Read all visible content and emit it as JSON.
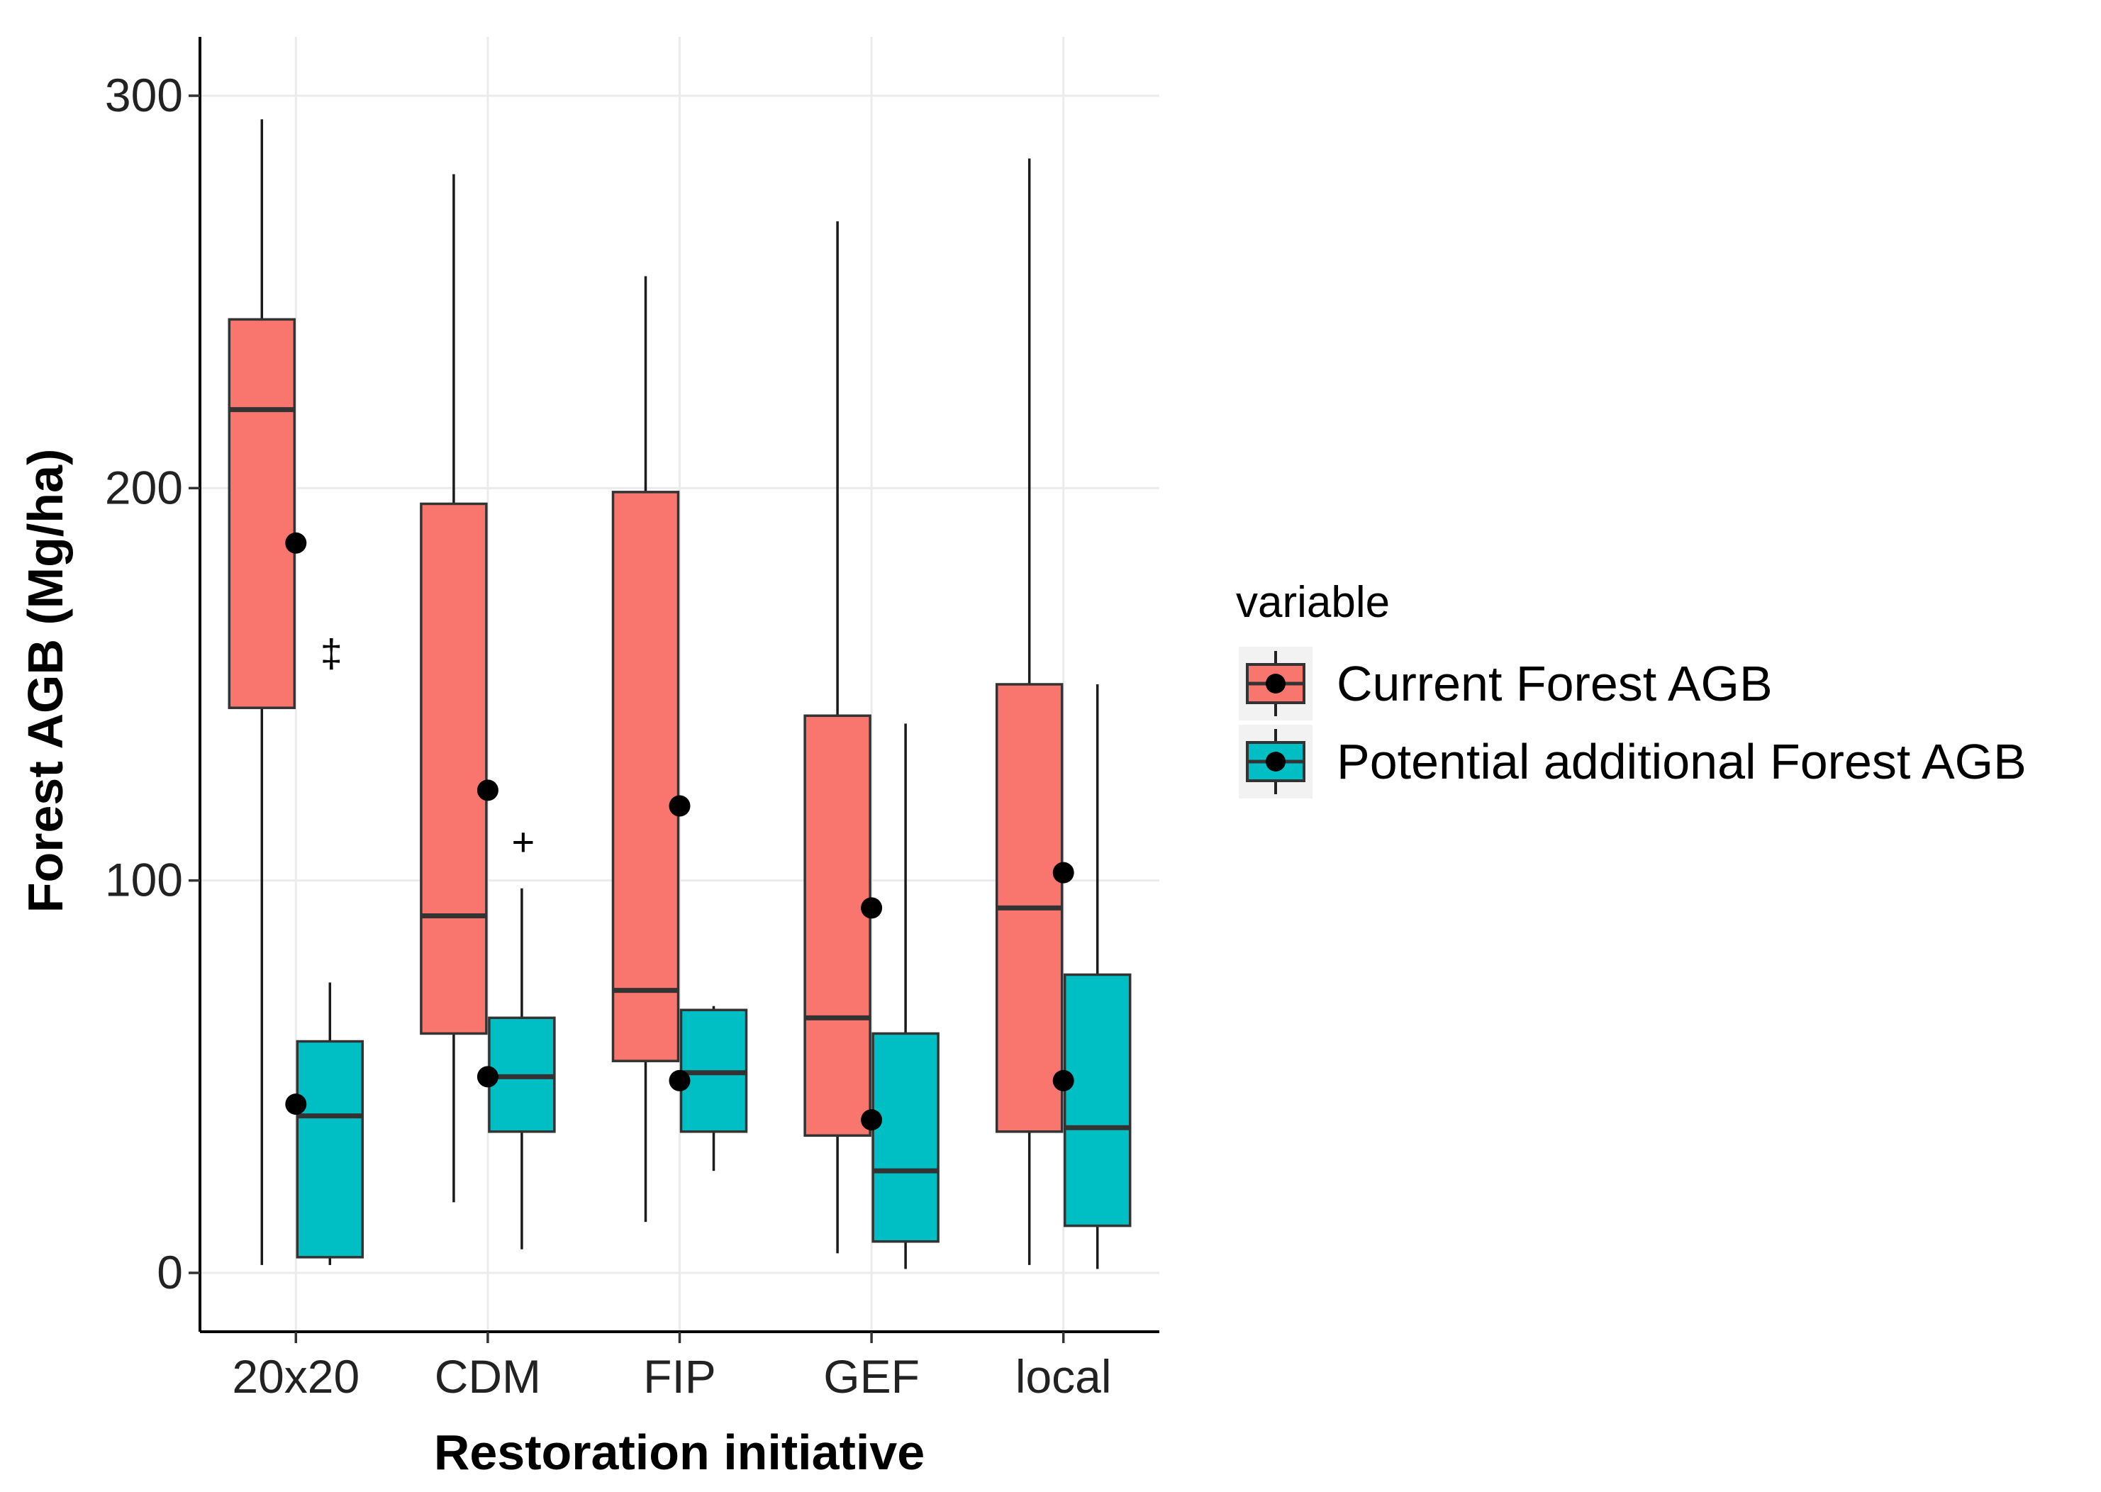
{
  "chart_data": {
    "type": "boxplot",
    "title": "",
    "xlabel": "Restoration initiative",
    "ylabel": "Forest AGB (Mg/ha)",
    "ylim": [
      -15,
      315
    ],
    "yticks": [
      0,
      100,
      200,
      300
    ],
    "ytick_labels": [
      "0",
      "100",
      "200",
      "300"
    ],
    "categories": [
      "20x20",
      "CDM",
      "FIP",
      "GEF",
      "local"
    ],
    "grid": true,
    "legend": {
      "title": "variable",
      "position": "right"
    },
    "series": [
      {
        "name": "Current Forest AGB",
        "color": "#F8766D",
        "boxes": [
          {
            "whisker_low": 2,
            "q1": 144,
            "median": 220,
            "q3": 243,
            "whisker_high": 294,
            "mean": 186
          },
          {
            "whisker_low": 18,
            "q1": 61,
            "median": 91,
            "q3": 196,
            "whisker_high": 280,
            "mean": 123
          },
          {
            "whisker_low": 13,
            "q1": 54,
            "median": 72,
            "q3": 199,
            "whisker_high": 254,
            "mean": 119
          },
          {
            "whisker_low": 5,
            "q1": 35,
            "median": 65,
            "q3": 142,
            "whisker_high": 268,
            "mean": 93
          },
          {
            "whisker_low": 2,
            "q1": 36,
            "median": 93,
            "q3": 150,
            "whisker_high": 284,
            "mean": 102
          }
        ]
      },
      {
        "name": "Potential additional Forest AGB",
        "color": "#00BFC4",
        "boxes": [
          {
            "whisker_low": 2,
            "q1": 4,
            "median": 40,
            "q3": 59,
            "whisker_high": 74,
            "mean": 43
          },
          {
            "whisker_low": 6,
            "q1": 36,
            "median": 50,
            "q3": 65,
            "whisker_high": 98,
            "mean": 50
          },
          {
            "whisker_low": 26,
            "q1": 36,
            "median": 51,
            "q3": 67,
            "whisker_high": 68,
            "mean": 49
          },
          {
            "whisker_low": 1,
            "q1": 8,
            "median": 26,
            "q3": 61,
            "whisker_high": 140,
            "mean": 39
          },
          {
            "whisker_low": 1,
            "q1": 12,
            "median": 37,
            "q3": 76,
            "whisker_high": 150,
            "mean": 49
          }
        ]
      }
    ],
    "annotations": [
      {
        "text": "‡",
        "category": "20x20",
        "y": 158
      },
      {
        "text": "+",
        "category": "CDM",
        "y": 110
      }
    ]
  }
}
